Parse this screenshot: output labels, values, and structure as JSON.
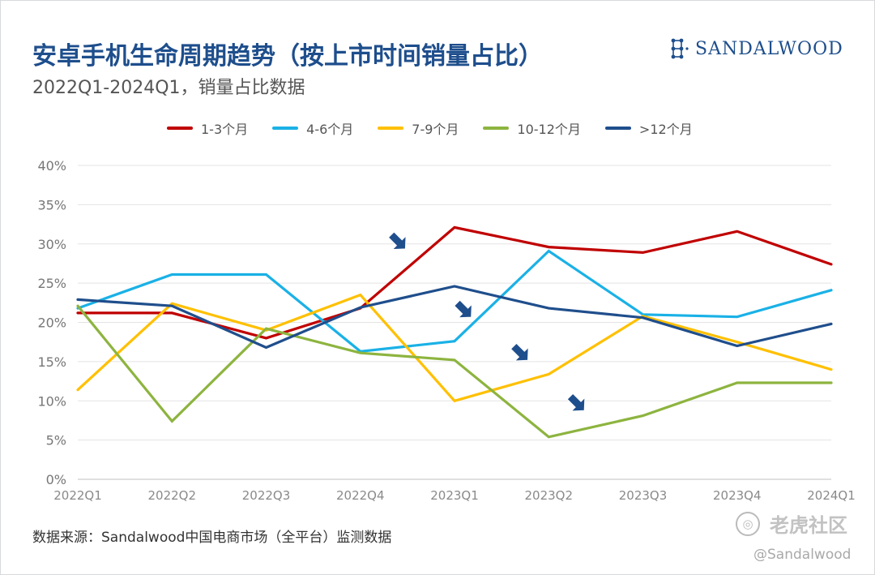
{
  "header": {
    "title": "安卓手机生命周期趋势（按上市时间销量占比）",
    "subtitle": "2022Q1-2024Q1，销量占比数据",
    "brand": "SANDALWOOD"
  },
  "footer": {
    "source": "数据来源：Sandalwood中国电商市场（全平台）监测数据",
    "watermark": "老虎社区",
    "credit": "@Sandalwood"
  },
  "chart_data": {
    "type": "line",
    "title": "安卓手机生命周期趋势（按上市时间销量占比）",
    "subtitle": "2022Q1-2024Q1，销量占比数据",
    "categories": [
      "2022Q1",
      "2022Q2",
      "2022Q3",
      "2022Q4",
      "2023Q1",
      "2023Q2",
      "2023Q3",
      "2023Q4",
      "2024Q1"
    ],
    "ylim": [
      0,
      40
    ],
    "yticks": [
      "0%",
      "5%",
      "10%",
      "15%",
      "20%",
      "25%",
      "30%",
      "35%",
      "40%"
    ],
    "grid": true,
    "legend_position": "top",
    "series": [
      {
        "name": "1-3个月",
        "color": "#c00000",
        "values": [
          21.2,
          21.2,
          18.0,
          21.8,
          32.1,
          29.6,
          28.9,
          31.6,
          27.4
        ]
      },
      {
        "name": "4-6个月",
        "color": "#1ab1e6",
        "values": [
          21.8,
          26.1,
          26.1,
          16.3,
          17.6,
          29.1,
          21.0,
          20.7,
          24.1
        ]
      },
      {
        "name": "7-9个月",
        "color": "#ffc000",
        "values": [
          11.4,
          22.4,
          19.0,
          23.5,
          10.0,
          13.4,
          20.8,
          17.5,
          14.0
        ]
      },
      {
        "name": "10-12个月",
        "color": "#8db43f",
        "values": [
          22.1,
          7.4,
          19.2,
          16.1,
          15.2,
          5.4,
          8.1,
          12.3,
          12.3
        ]
      },
      {
        "name": ">12个月",
        "color": "#1f4e8c",
        "values": [
          22.9,
          22.1,
          16.8,
          21.9,
          24.6,
          21.8,
          20.6,
          17.0,
          19.8
        ]
      }
    ],
    "annotations": [
      {
        "type": "arrow",
        "color": "#1f4e8c",
        "category_pos": 3.4,
        "y": 30.3
      },
      {
        "type": "arrow",
        "color": "#1f4e8c",
        "category_pos": 4.1,
        "y": 21.6
      },
      {
        "type": "arrow",
        "color": "#1f4e8c",
        "category_pos": 4.7,
        "y": 16.1
      },
      {
        "type": "arrow",
        "color": "#1f4e8c",
        "category_pos": 5.3,
        "y": 9.7
      }
    ]
  }
}
